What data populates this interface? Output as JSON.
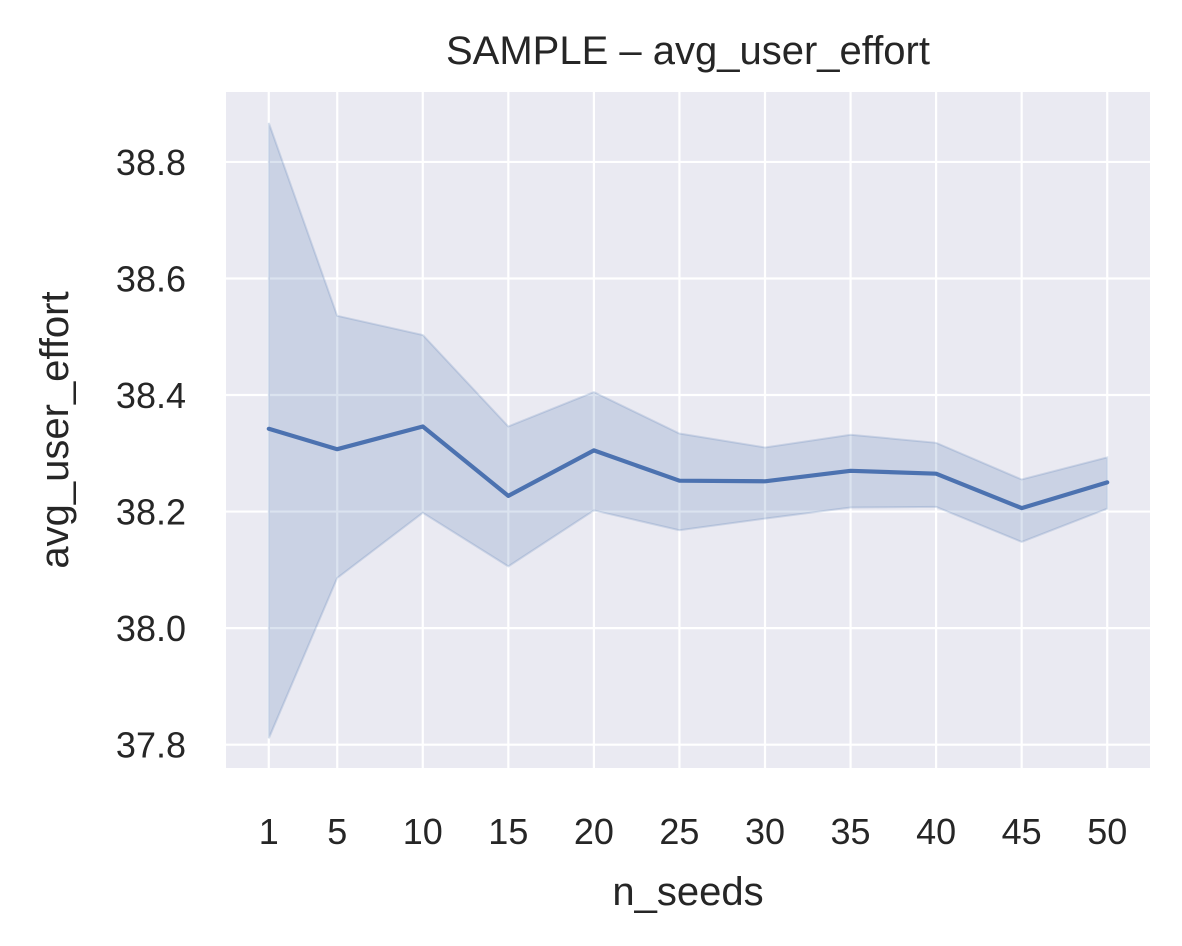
{
  "chart_data": {
    "type": "line",
    "title": "SAMPLE – avg_user_effort",
    "xlabel": "n_seeds",
    "ylabel": "avg_user_effort",
    "x": [
      1,
      5,
      10,
      15,
      20,
      25,
      30,
      35,
      40,
      45,
      50
    ],
    "x_tick_labels": [
      "1",
      "5",
      "10",
      "15",
      "20",
      "25",
      "30",
      "35",
      "40",
      "45",
      "50"
    ],
    "xlim": [
      -1.5,
      52.5
    ],
    "y_ticks": [
      37.8,
      38.0,
      38.2,
      38.4,
      38.6,
      38.8
    ],
    "y_tick_labels": [
      "37.8",
      "38.0",
      "38.2",
      "38.4",
      "38.6",
      "38.8"
    ],
    "ylim": [
      37.76,
      38.92
    ],
    "grid": true,
    "series": [
      {
        "values": [
          38.342,
          38.307,
          38.346,
          38.227,
          38.305,
          38.253,
          38.252,
          38.27,
          38.265,
          38.206,
          38.25
        ],
        "ci_lower": [
          37.811,
          38.086,
          38.198,
          38.106,
          38.202,
          38.168,
          38.188,
          38.207,
          38.208,
          38.148,
          38.205
        ],
        "ci_upper": [
          38.867,
          38.536,
          38.503,
          38.346,
          38.405,
          38.334,
          38.31,
          38.332,
          38.318,
          38.255,
          38.293
        ],
        "color": "#4c72b0"
      }
    ],
    "plot_background": "#eaeaf2",
    "grid_color": "#ffffff"
  }
}
